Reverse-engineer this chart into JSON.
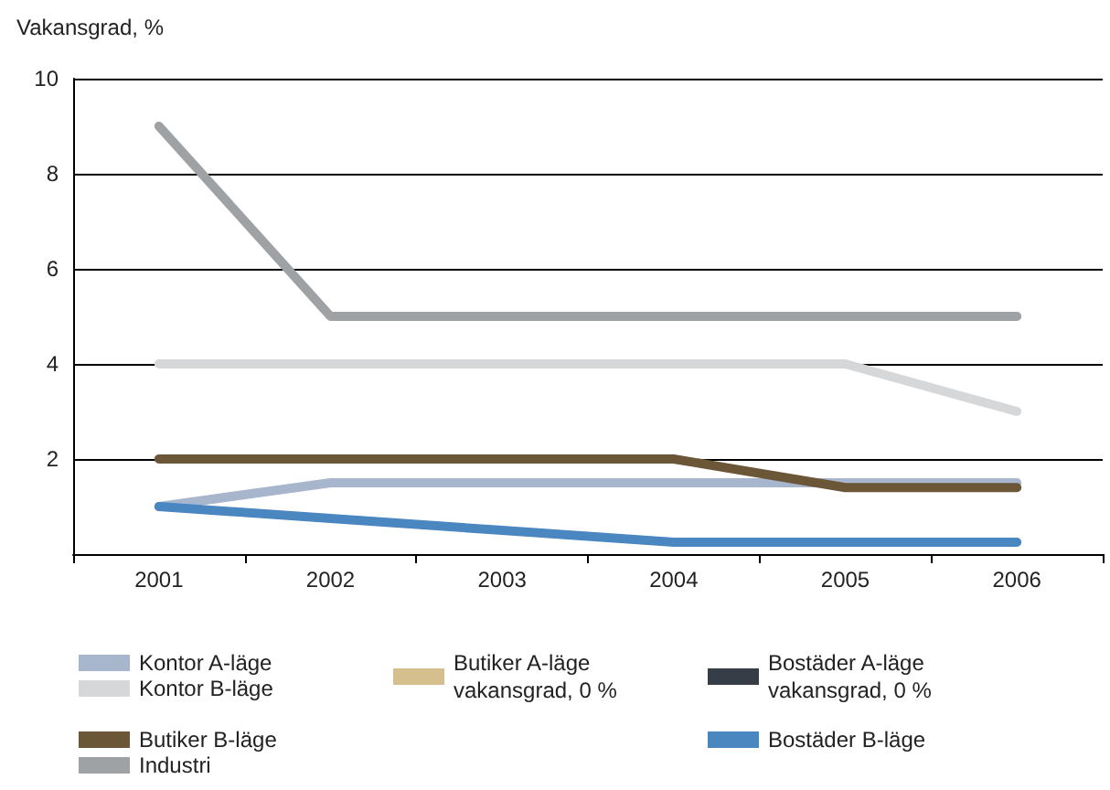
{
  "chart_data": {
    "type": "line",
    "ylabel": "Vakansgrad, %",
    "categories": [
      "2001",
      "2002",
      "2003",
      "2004",
      "2005",
      "2006"
    ],
    "ylim": [
      0,
      10
    ],
    "yticks": [
      {
        "value": 0,
        "label": null
      },
      2,
      4,
      6,
      8,
      10
    ],
    "grid": "y",
    "legend": "bottom",
    "marker": "none",
    "line_style": "solid",
    "series": [
      {
        "name": "Kontor A-läge",
        "color": "#a7b5cd",
        "values": [
          1,
          1.5,
          1.5,
          1.5,
          1.5,
          1.5
        ]
      },
      {
        "name": "Kontor B-läge",
        "color": "#d5d7d9",
        "values": [
          4,
          4,
          4,
          4,
          4,
          3
        ]
      },
      {
        "name": "Butiker A-läge vakansgrad, 0 %",
        "color": "#d6bf8f",
        "values": [
          null,
          null,
          null,
          null,
          null,
          null
        ]
      },
      {
        "name": "Butiker B-läge",
        "color": "#6b5638",
        "values": [
          2,
          2,
          2,
          2,
          1.4,
          1.4
        ]
      },
      {
        "name": "Industri",
        "color": "#9fa2a5",
        "values": [
          9,
          5,
          5,
          5,
          5,
          5
        ]
      },
      {
        "name": "Bostäder A-läge vakansgrad, 0 %",
        "color": "#363d46",
        "values": [
          null,
          null,
          null,
          null,
          null,
          null
        ]
      },
      {
        "name": "Bostäder B-läge",
        "color": "#4a86c0",
        "values": [
          1,
          0.75,
          0.5,
          0.25,
          0.25,
          0.25
        ]
      }
    ]
  }
}
